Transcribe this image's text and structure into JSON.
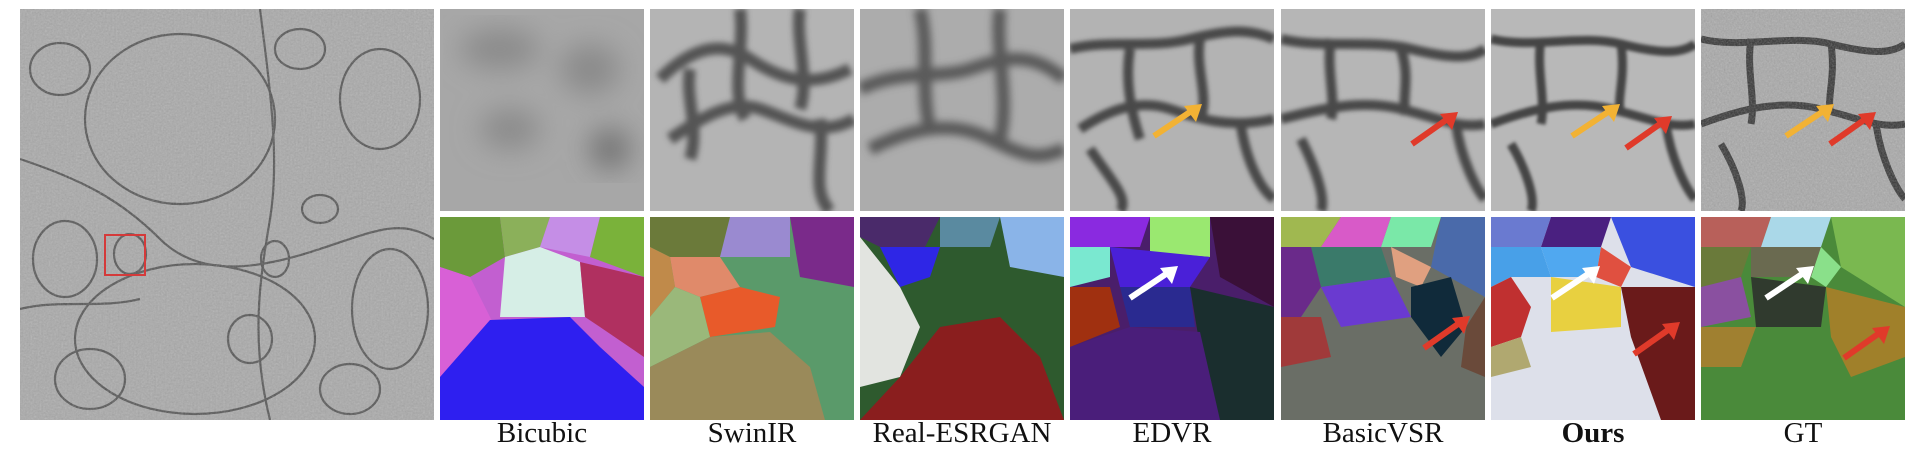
{
  "figure": {
    "methods": [
      {
        "label": "Bicubic",
        "bold": false
      },
      {
        "label": "SwinIR",
        "bold": false
      },
      {
        "label": "Real-ESRGAN",
        "bold": false
      },
      {
        "label": "EDVR",
        "bold": false
      },
      {
        "label": "BasicVSR",
        "bold": false
      },
      {
        "label": "Ours",
        "bold": true
      },
      {
        "label": "GT",
        "bold": false
      }
    ],
    "arrow_colors": {
      "orange": "#f2b234",
      "red": "#e03a2a",
      "white": "#ffffff"
    },
    "roi_box_color": "#d43a3a"
  }
}
